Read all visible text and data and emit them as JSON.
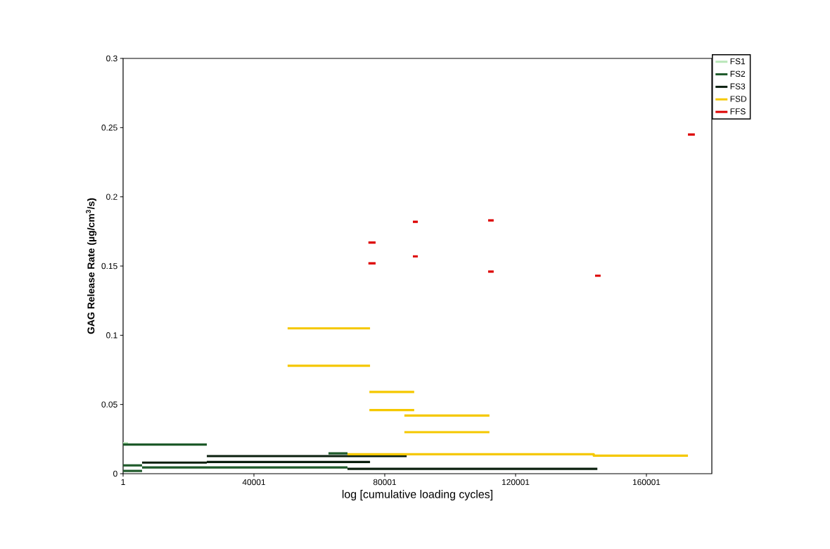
{
  "chart_data": {
    "type": "line",
    "xlabel": "log [cumulative loading cycles]",
    "ylabel": "GAG Release Rate (µg/cm$^{3}$/s)",
    "xlim": [
      1,
      180001
    ],
    "ylim": [
      0,
      0.3
    ],
    "xticks": [
      1,
      40001,
      80001,
      120001,
      160001
    ],
    "yticks": [
      0,
      0.05,
      0.1,
      0.15,
      0.2,
      0.25,
      0.3
    ],
    "grid": false,
    "legend": "top right",
    "series": [
      {
        "name": "FS1",
        "color": "#b8e6b8",
        "x": [
          1,
          1500
        ],
        "values": [
          0.022,
          0.022
        ]
      },
      {
        "name": "FS2",
        "color": "#1e5a2a",
        "x": [
          1,
          25600,
          null,
          5800,
          68600,
          null,
          62800,
          68600
        ],
        "values": [
          0.021,
          0.021,
          null,
          0.0045,
          0.0045,
          null,
          0.0147,
          0.0147
        ]
      },
      {
        "name": "FS3",
        "color": "#0a1f0e",
        "x": [
          5800,
          25600,
          null,
          25600,
          86700,
          null,
          25600,
          75500,
          null,
          68600,
          145000
        ],
        "values": [
          0.008,
          0.008,
          null,
          0.0127,
          0.0127,
          null,
          0.0085,
          0.0085,
          null,
          0.0035,
          0.0035
        ]
      },
      {
        "name": "FSD",
        "color": "#f5c800",
        "x": [
          50300,
          75500,
          null,
          75300,
          89000,
          null,
          86000,
          112000,
          null,
          68600,
          143900,
          143900,
          172700
        ],
        "values": [
          0.105,
          0.105,
          null,
          0.059,
          0.059,
          null,
          0.042,
          0.042,
          null,
          0.014,
          0.014,
          0.013,
          0.013
        ]
      },
      {
        "name": "FFS",
        "color": "#dd0000",
        "x": [
          75000,
          77200,
          null,
          88600,
          90100,
          null,
          111600,
          113300,
          null,
          144300,
          146000,
          null,
          172700,
          174800
        ],
        "values": [
          0.167,
          0.167,
          null,
          0.182,
          0.182,
          null,
          0.183,
          0.183,
          null,
          0.143,
          0.143,
          null,
          0.245,
          0.245
        ]
      },
      {
        "color": "#1e5a2a",
        "x": [
          1,
          5800
        ],
        "values": [
          0.006,
          0.006
        ]
      },
      {
        "color": "#1e5a2a",
        "x": [
          1,
          5800
        ],
        "values": [
          0.002,
          0.002
        ]
      },
      {
        "color": "#f5c800",
        "x": [
          50300,
          75500,
          null,
          75300,
          89000,
          null,
          86000,
          112000
        ],
        "values": [
          0.078,
          0.078,
          null,
          0.046,
          0.046,
          null,
          0.03,
          0.03
        ]
      },
      {
        "color": "#dd0000",
        "x": [
          75000,
          77200,
          null,
          88600,
          90100,
          null,
          111600,
          113300
        ],
        "values": [
          0.152,
          0.152,
          null,
          0.157,
          0.157,
          null,
          0.146,
          0.146
        ]
      }
    ]
  }
}
